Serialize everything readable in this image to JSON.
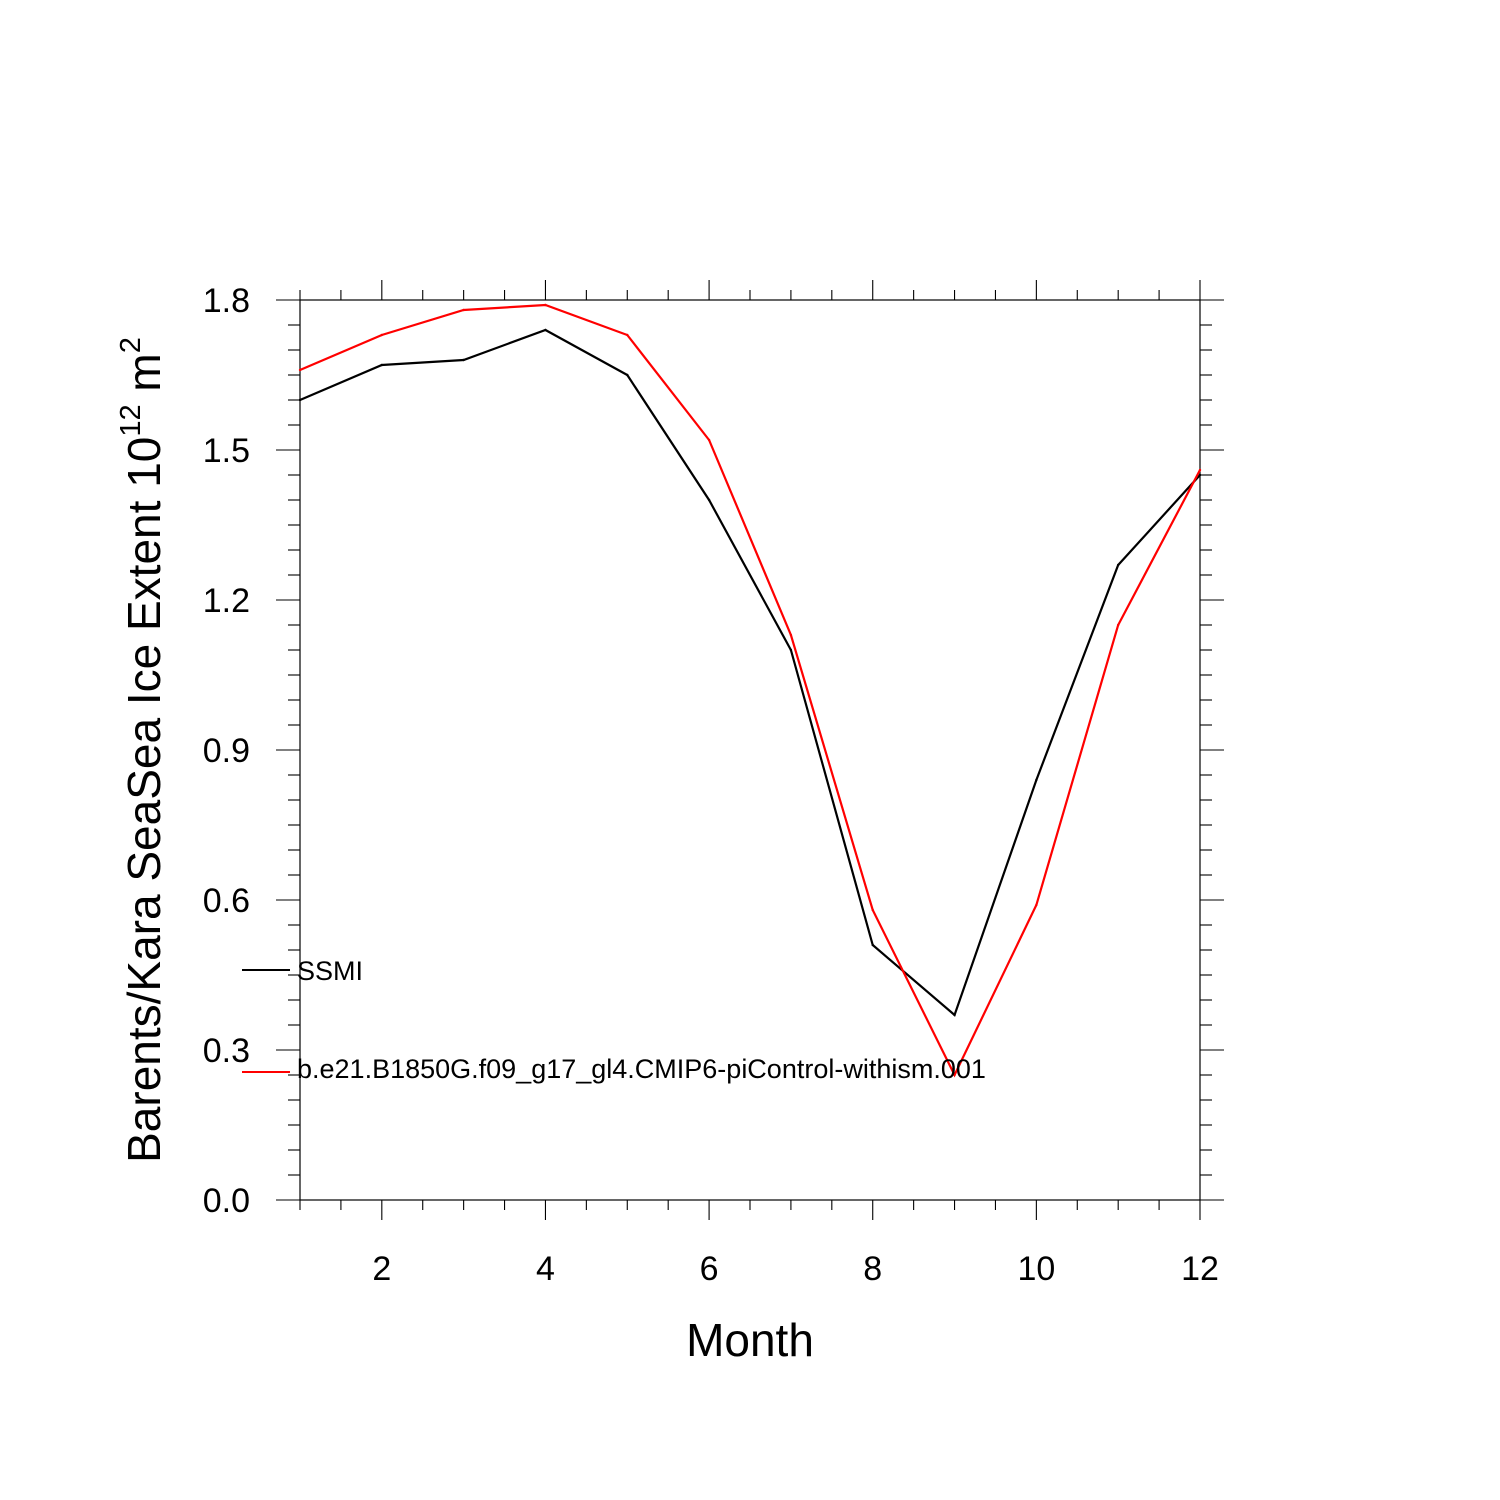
{
  "chart_data": {
    "type": "line",
    "title": "",
    "xlabel": "Month",
    "ylabel": {
      "main": "Barents/Kara SeaSea Ice Extent 10",
      "exponent": "12",
      "unit_base": " m",
      "unit_exponent": "2"
    },
    "xlim": [
      1,
      12
    ],
    "ylim": [
      0.0,
      1.8
    ],
    "x_ticks": [
      2,
      4,
      6,
      8,
      10,
      12
    ],
    "x_tick_labels": [
      "2",
      "4",
      "6",
      "8",
      "10",
      "12"
    ],
    "y_ticks": [
      0.0,
      0.3,
      0.6,
      0.9,
      1.2,
      1.5,
      1.8
    ],
    "y_tick_labels": [
      "0.0",
      "0.3",
      "0.6",
      "0.9",
      "1.2",
      "1.5",
      "1.8"
    ],
    "grid": false,
    "legend_position": "left",
    "x": [
      1,
      2,
      3,
      4,
      5,
      6,
      7,
      8,
      9,
      10,
      11,
      12
    ],
    "series": [
      {
        "name": "SSMI",
        "color": "#000000",
        "values": [
          1.6,
          1.67,
          1.68,
          1.74,
          1.65,
          1.4,
          1.1,
          0.51,
          0.37,
          0.84,
          1.27,
          1.45
        ]
      },
      {
        "name": "b.e21.B1850G.f09_g17_gl4.CMIP6-piControl-withism.001",
        "color": "#ff0000",
        "values": [
          1.66,
          1.73,
          1.78,
          1.79,
          1.73,
          1.52,
          1.13,
          0.58,
          0.25,
          0.59,
          1.15,
          1.46
        ]
      }
    ]
  }
}
